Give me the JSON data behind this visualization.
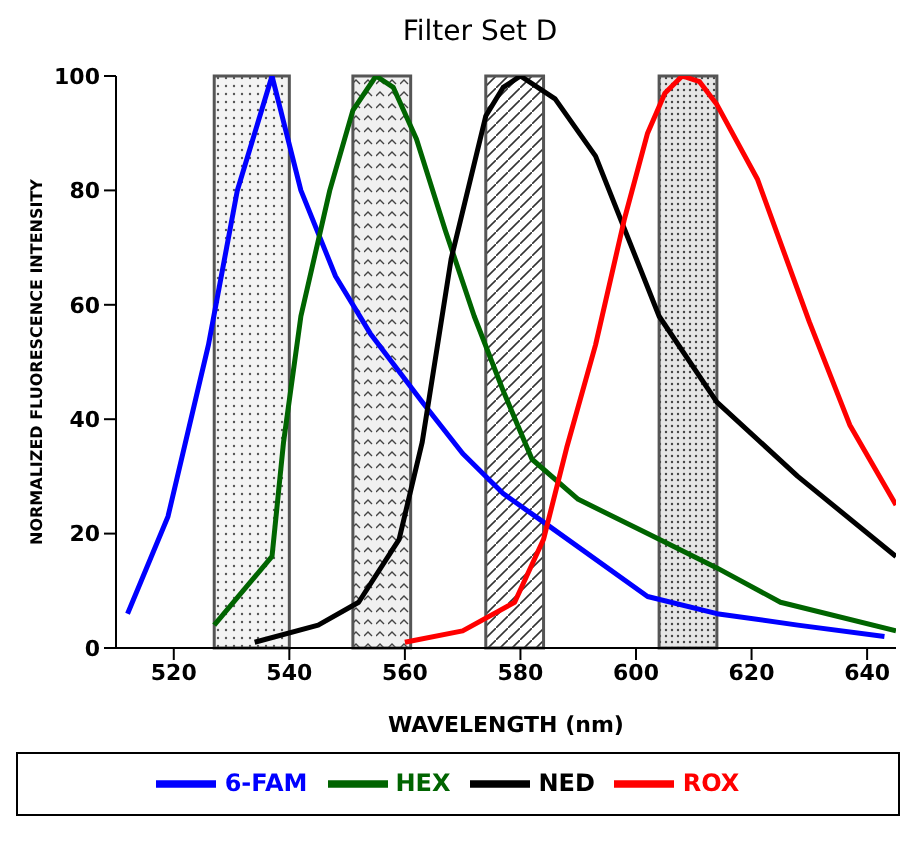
{
  "chart_data": {
    "type": "line",
    "title": "Filter Set D",
    "xlabel": "WAVELENGTH (nm)",
    "ylabel": "NORMALIZED FLUORESCENCE INTENSITY",
    "xlim": [
      510,
      645
    ],
    "xticks": [
      520,
      540,
      560,
      580,
      600,
      620,
      640
    ],
    "ylim": [
      0,
      100
    ],
    "yticks": [
      0,
      20,
      40,
      60,
      80,
      100
    ],
    "grid": false,
    "legend": "bottom",
    "marker": "none",
    "line_style": "solid",
    "bands": [
      {
        "axis": "x",
        "from": 527,
        "to": 540,
        "label": null
      },
      {
        "axis": "x",
        "from": 551,
        "to": 561,
        "label": null
      },
      {
        "axis": "x",
        "from": 574,
        "to": 584,
        "label": null
      },
      {
        "axis": "x",
        "from": 604,
        "to": 614,
        "label": null
      }
    ],
    "series": [
      {
        "name": "6-FAM",
        "color": "#0000ff",
        "x": [
          512,
          519,
          526,
          531,
          537,
          542,
          548,
          554,
          563,
          570,
          577,
          584,
          602,
          614,
          628,
          643
        ],
        "values": [
          6,
          23,
          53,
          80,
          100,
          80,
          65,
          55,
          43,
          34,
          27,
          22,
          9,
          6,
          4,
          2
        ]
      },
      {
        "name": "HEX",
        "color": "#006400",
        "x": [
          527,
          537,
          539,
          542,
          547,
          551,
          555,
          558,
          562,
          567,
          572,
          577,
          582,
          590,
          602,
          614,
          625,
          645
        ],
        "values": [
          4,
          16,
          36,
          58,
          80,
          94,
          100,
          98,
          89,
          73,
          58,
          45,
          33,
          26,
          20,
          14,
          8,
          3
        ]
      },
      {
        "name": "NED",
        "color": "#000000",
        "x": [
          534,
          545,
          552,
          559,
          563,
          568,
          574,
          577,
          580,
          586,
          593,
          604,
          614,
          628,
          645
        ],
        "values": [
          1,
          4,
          8,
          19,
          36,
          68,
          93,
          98,
          100,
          96,
          86,
          58,
          43,
          30,
          16
        ]
      },
      {
        "name": "ROX",
        "color": "#ff0000",
        "x": [
          560,
          570,
          579,
          584,
          588,
          593,
          598,
          602,
          605,
          608,
          611,
          614,
          621,
          630,
          637,
          645
        ],
        "values": [
          1,
          3,
          8,
          19,
          35,
          53,
          75,
          90,
          97,
          100,
          99,
          95,
          82,
          57,
          39,
          25
        ]
      }
    ]
  }
}
